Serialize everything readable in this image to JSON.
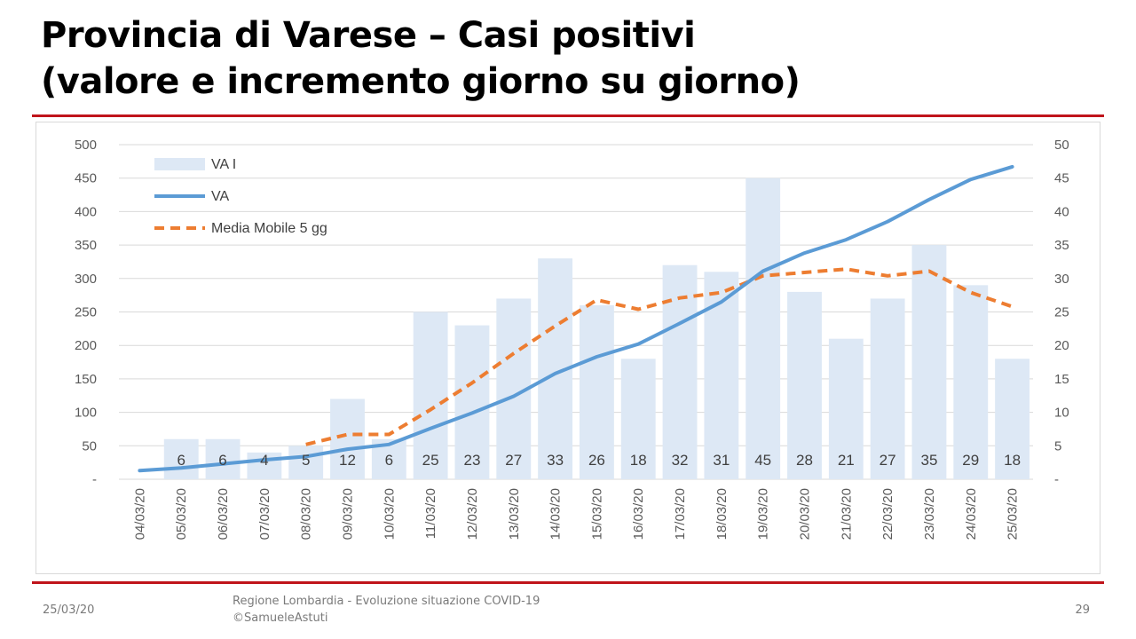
{
  "slide": {
    "title_line1": "Provincia di Varese – Casi positivi",
    "title_line2": "(valore e incremento giorno su giorno)",
    "footer_date": "25/03/20",
    "footer_source_line1": "Regione Lombardia - Evoluzione situazione COVID-19",
    "footer_source_line2": "©SamueleAstuti",
    "page_number": "29"
  },
  "colors": {
    "bars": "#dde8f5",
    "va_line": "#5b9bd5",
    "moving_average": "#ed7d31",
    "rule": "#c0141b",
    "grid": "#d9d9d9"
  },
  "chart_data": {
    "type": "bar",
    "categories": [
      "04/03/20",
      "05/03/20",
      "06/03/20",
      "07/03/20",
      "08/03/20",
      "09/03/20",
      "10/03/20",
      "11/03/20",
      "12/03/20",
      "13/03/20",
      "14/03/20",
      "15/03/20",
      "16/03/20",
      "17/03/20",
      "18/03/20",
      "19/03/20",
      "20/03/20",
      "21/03/20",
      "22/03/20",
      "23/03/20",
      "24/03/20",
      "25/03/20"
    ],
    "left_axis": {
      "ylim": [
        0,
        500
      ],
      "ticks": [
        "-",
        "50",
        "100",
        "150",
        "200",
        "250",
        "300",
        "350",
        "400",
        "450",
        "500"
      ]
    },
    "right_axis": {
      "ylim": [
        0,
        50
      ],
      "ticks": [
        "-",
        "5",
        "10",
        "15",
        "20",
        "25",
        "30",
        "35",
        "40",
        "45",
        "50"
      ]
    },
    "grid": true,
    "legend_position": "top-left",
    "series": [
      {
        "name": "VA I",
        "type": "bar",
        "axis": "right",
        "values": [
          null,
          6,
          6,
          4,
          5,
          12,
          6,
          25,
          23,
          27,
          33,
          26,
          18,
          32,
          31,
          45,
          28,
          21,
          27,
          35,
          29,
          18
        ],
        "labels": [
          "",
          "6",
          "6",
          "4",
          "5",
          "12",
          "6",
          "25",
          "23",
          "27",
          "33",
          "26",
          "18",
          "32",
          "31",
          "45",
          "28",
          "21",
          "27",
          "35",
          "29",
          "18"
        ]
      },
      {
        "name": "VA",
        "type": "line",
        "axis": "left",
        "values": [
          13,
          17,
          23,
          29,
          34,
          45,
          52,
          76,
          99,
          124,
          158,
          183,
          202,
          233,
          265,
          311,
          338,
          358,
          385,
          418,
          448,
          467
        ]
      },
      {
        "name": "Media Mobile 5 gg",
        "type": "line",
        "style": "dashed",
        "axis": "left",
        "values": [
          null,
          null,
          null,
          null,
          52,
          67,
          67,
          104,
          144,
          188,
          229,
          268,
          254,
          271,
          279,
          304,
          309,
          314,
          304,
          311,
          279,
          258
        ]
      }
    ]
  }
}
